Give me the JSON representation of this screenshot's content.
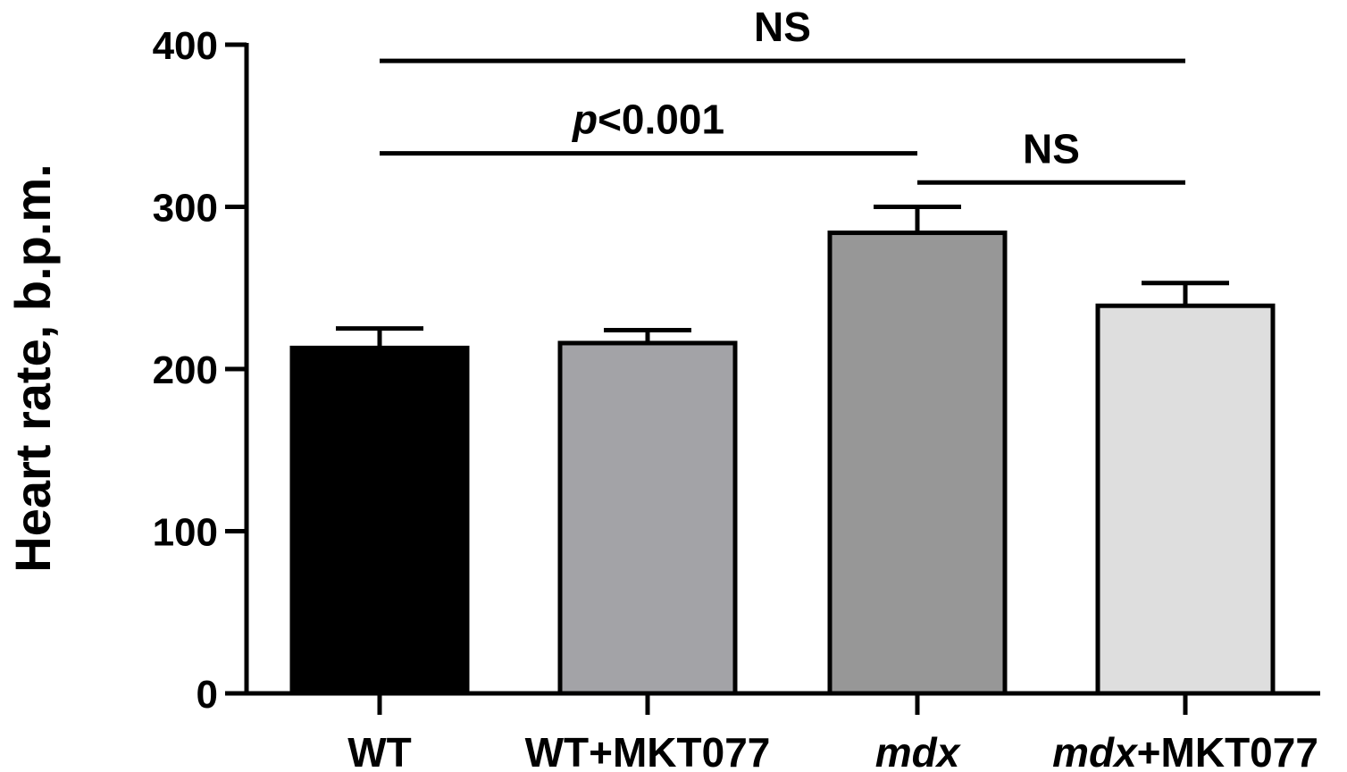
{
  "chart_data": {
    "type": "bar",
    "title": "",
    "xlabel": "",
    "ylabel": "Heart rate, b.p.m.",
    "ylim": [
      0,
      400
    ],
    "yticks": [
      0,
      100,
      200,
      300,
      400
    ],
    "categories": [
      {
        "name": "WT",
        "italic": "",
        "rest": "WT"
      },
      {
        "name": "WT+MKT077",
        "italic": "",
        "rest": "WT+MKT077"
      },
      {
        "name": "mdx",
        "italic": "mdx",
        "rest": ""
      },
      {
        "name": "mdx+MKT077",
        "italic": "mdx",
        "rest": "+MKT077"
      }
    ],
    "values": [
      213,
      216,
      284,
      239
    ],
    "errors": [
      12,
      8,
      16,
      14
    ],
    "colors": [
      "#000000",
      "#a3a3a7",
      "#979797",
      "#dedede"
    ],
    "significance": [
      {
        "from": 0,
        "to": 3,
        "label": "NS",
        "italic_prefix": "",
        "y": 390
      },
      {
        "from": 0,
        "to": 2,
        "label": "<0.001",
        "italic_prefix": "p",
        "y": 333
      },
      {
        "from": 2,
        "to": 3,
        "label": "NS",
        "italic_prefix": "",
        "y": 315
      }
    ]
  }
}
